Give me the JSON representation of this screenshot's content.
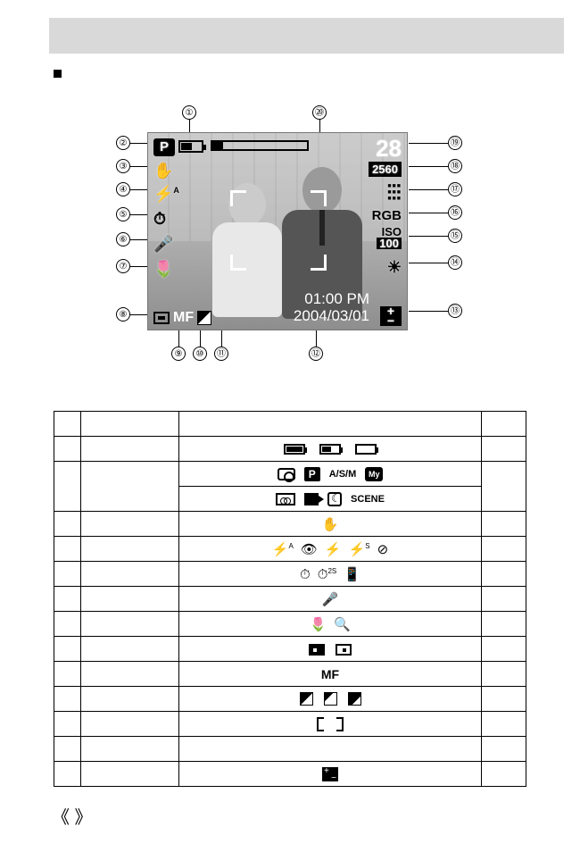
{
  "lcd": {
    "mode_badge": "P",
    "shots_remaining": "28",
    "image_size": "2560",
    "rgb_label": "RGB",
    "iso_label": "ISO",
    "iso_value": "100",
    "mf_label": "MF",
    "time": "01:00 PM",
    "date": "2004/03/01",
    "flash_text": "A"
  },
  "callouts": {
    "c1": "①",
    "c2": "②",
    "c3": "③",
    "c4": "④",
    "c5": "⑤",
    "c6": "⑥",
    "c7": "⑦",
    "c8": "⑧",
    "c9": "⑨",
    "c10": "⑩",
    "c11": "⑪",
    "c12": "⑫",
    "c13": "⑬",
    "c14": "⑭",
    "c15": "⑮",
    "c16": "⑯",
    "c17": "⑰",
    "c18": "⑱",
    "c19": "⑲",
    "c20": "⑳"
  },
  "table": {
    "rows": [
      {
        "icons_type": "battery"
      },
      {
        "icons_type": "mode1"
      },
      {
        "icons_type": "mode2"
      },
      {
        "icons_type": "shake"
      },
      {
        "icons_type": "flash"
      },
      {
        "icons_type": "timer"
      },
      {
        "icons_type": "mic"
      },
      {
        "icons_type": "macro"
      },
      {
        "icons_type": "metering"
      },
      {
        "icons_type": "mf",
        "text": "MF"
      },
      {
        "icons_type": "sharpness"
      },
      {
        "icons_type": "af"
      },
      {
        "icons_type": "blank"
      },
      {
        "icons_type": "ev"
      }
    ],
    "asm_text": "A/S/M",
    "scene_text": "SCENE",
    "timer_2s": "2S"
  },
  "footer": {
    "angles": "《  》"
  }
}
